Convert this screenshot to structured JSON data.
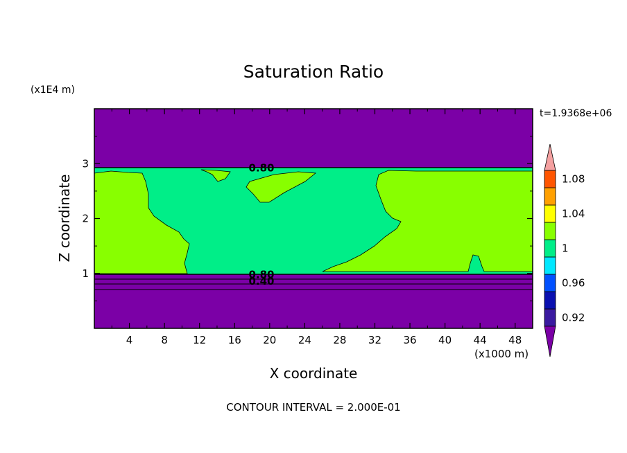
{
  "chart_data": {
    "type": "heatmap",
    "title": "Saturation Ratio",
    "xlabel": "X coordinate",
    "ylabel": "Z coordinate",
    "x_scale_label": "(x1000 m)",
    "y_scale_label": "(x1E4 m)",
    "time_label": "t=1.9368e+06",
    "footer": "CONTOUR INTERVAL = 2.000E-01",
    "xlim": [
      0,
      50
    ],
    "ylim": [
      0,
      4
    ],
    "x_ticks": [
      4,
      8,
      12,
      16,
      20,
      24,
      28,
      32,
      36,
      40,
      44,
      48
    ],
    "y_ticks": [
      1,
      2,
      3
    ],
    "colorbar": {
      "levels": [
        0.92,
        0.94,
        0.96,
        0.98,
        1.0,
        1.02,
        1.04,
        1.06,
        1.08,
        1.1
      ],
      "tick_labels": [
        "0.92",
        "0.96",
        "1",
        "1.04",
        "1.08"
      ],
      "tick_values": [
        0.92,
        0.96,
        1.0,
        1.04,
        1.08
      ],
      "colors": {
        "under": "#7b00a6",
        "0.92": "#3a1aa0",
        "0.94": "#0a10b0",
        "0.96": "#0050ff",
        "0.98": "#00e8ff",
        "1.00": "#00ee88",
        "1.02": "#88ff00",
        "1.04": "#ffff00",
        "1.06": "#ffa000",
        "1.08": "#ff5500",
        "1.10": "#ff2020",
        "over": "#f4a0a0"
      }
    },
    "regions": [
      {
        "name": "upper-dry",
        "value_class": "under",
        "x": [
          0,
          50
        ],
        "z": [
          2.92,
          4.0
        ]
      },
      {
        "name": "lower-dry",
        "value_class": "under",
        "x": [
          0,
          50
        ],
        "z": [
          0,
          0.98
        ]
      },
      {
        "name": "cloud-layer-saturated",
        "value_class": "1.00",
        "x": [
          0,
          50
        ],
        "z": [
          0.98,
          2.92
        ]
      },
      {
        "name": "supersaturated-west",
        "value_class": "1.02",
        "x": [
          0,
          11
        ],
        "z": [
          1.0,
          2.85
        ]
      },
      {
        "name": "supersaturated-east",
        "value_class": "1.02",
        "x": [
          26,
          50
        ],
        "z": [
          1.0,
          2.85
        ]
      },
      {
        "name": "supersaturated-center",
        "value_class": "1.02",
        "x": [
          17.5,
          25
        ],
        "z": [
          2.25,
          2.88
        ]
      }
    ],
    "contour_labels": [
      {
        "text": "0.80",
        "x": 17.6,
        "z": 2.92
      },
      {
        "text": "0.80",
        "x": 17.6,
        "z": 0.98
      },
      {
        "text": "0.40",
        "x": 17.6,
        "z": 0.86
      }
    ]
  }
}
